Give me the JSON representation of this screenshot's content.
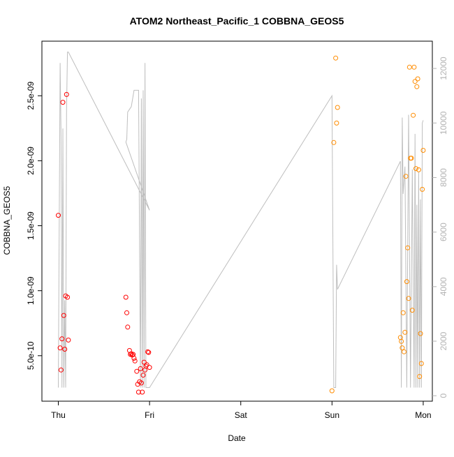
{
  "chart_data": {
    "type": "scatter",
    "title": "ATOM2 Northeast_Pacific_1 COBBNA_GEOS5",
    "xlabel": "Date",
    "ylabel": "COBBNA_GEOS5",
    "x_ticks": [
      "Thu",
      "Fri",
      "Sat",
      "Sun",
      "Mon"
    ],
    "xlim_days": [
      -0.18,
      4.1
    ],
    "ylim": [
      1.5e-10,
      2.92e-09
    ],
    "y_ticks": [
      {
        "value": 5e-10,
        "label": "5.0e-10"
      },
      {
        "value": 1e-09,
        "label": "1.0e-09"
      },
      {
        "value": 1.5e-09,
        "label": "1.5e-09"
      },
      {
        "value": 2e-09,
        "label": "2.0e-09"
      },
      {
        "value": 2.5e-09,
        "label": "2.5e-09"
      }
    ],
    "y2lim": [
      -200,
      13000
    ],
    "y2_ticks": [
      0,
      2000,
      4000,
      6000,
      8000,
      10000,
      12000
    ],
    "colors": {
      "series1": "#ff0000",
      "series2": "#ff8c00",
      "line": "#bebebe",
      "right_axis": "#b3b3b3"
    },
    "series": [
      {
        "color": "#ff0000",
        "x": [
          0.0,
          0.02,
          0.03,
          0.04,
          0.05,
          0.06,
          0.07,
          0.08,
          0.09,
          0.1,
          0.11,
          0.74,
          0.75,
          0.76,
          0.78,
          0.79,
          0.8,
          0.81,
          0.82,
          0.83,
          0.84,
          0.86,
          0.87,
          0.88,
          0.89,
          0.9,
          0.91,
          0.92,
          0.93,
          0.94,
          0.95,
          0.96,
          0.97,
          0.98,
          0.99,
          1.0
        ],
        "y": [
          1.58e-09,
          5.6e-10,
          3.9e-10,
          6.3e-10,
          2.45e-09,
          8.1e-10,
          5.5e-10,
          9.6e-10,
          2.51e-09,
          9.5e-10,
          6.2e-10,
          9.5e-10,
          8.3e-10,
          7.2e-10,
          5.4e-10,
          5.1e-10,
          5.15e-10,
          5.05e-10,
          5.1e-10,
          4.8e-10,
          4.6e-10,
          3.8e-10,
          2.8e-10,
          2.2e-10,
          3e-10,
          4e-10,
          2.9e-10,
          2.2e-10,
          3.5e-10,
          4.5e-10,
          3.9e-10,
          4.2e-10,
          4.3e-10,
          5.3e-10,
          5.25e-10,
          4.1e-10
        ]
      },
      {
        "color": "#ff8c00",
        "x": [
          3.0,
          3.02,
          3.04,
          3.05,
          3.06,
          3.75,
          3.76,
          3.77,
          3.78,
          3.79,
          3.8,
          3.81,
          3.82,
          3.83,
          3.84,
          3.85,
          3.86,
          3.87,
          3.88,
          3.89,
          3.9,
          3.91,
          3.92,
          3.93,
          3.94,
          3.95,
          3.96,
          3.97,
          3.98,
          3.99,
          4.0
        ],
        "y": [
          2.3e-10,
          2.14e-09,
          2.79e-09,
          2.29e-09,
          2.41e-09,
          6.4e-10,
          6.1e-10,
          5.6e-10,
          8.3e-10,
          5.3e-10,
          6.8e-10,
          1.88e-09,
          1.07e-09,
          1.33e-09,
          9.4e-10,
          2.72e-09,
          2.02e-09,
          2.02e-09,
          8.5e-10,
          2.35e-09,
          2.72e-09,
          2.61e-09,
          1.94e-09,
          2.57e-09,
          2.63e-09,
          1.93e-09,
          3.4e-10,
          6.7e-10,
          4.4e-10,
          1.78e-09,
          2.08e-09
        ]
      }
    ],
    "line_series": {
      "axis": "right",
      "x": [
        0.0,
        0.02,
        0.03,
        0.04,
        0.05,
        0.06,
        0.07,
        0.08,
        0.09,
        0.1,
        0.11,
        1.0,
        0.74,
        0.75,
        0.76,
        0.78,
        0.8,
        0.83,
        0.86,
        0.88,
        0.9,
        0.91,
        0.92,
        0.93,
        0.94,
        0.95,
        0.96,
        0.97,
        0.98,
        0.99,
        1.0,
        3.0,
        3.02,
        3.04,
        3.05,
        3.06,
        3.75,
        3.76,
        3.77,
        3.78,
        3.8,
        3.82,
        3.84,
        3.86,
        3.88,
        3.9,
        3.91,
        3.92,
        3.93,
        3.94,
        3.95,
        3.96,
        3.97,
        3.98,
        3.99,
        4.0
      ],
      "y": [
        300,
        12200,
        9500,
        300,
        9800,
        300,
        3500,
        300,
        10500,
        12600,
        12600,
        6800,
        9300,
        9400,
        10400,
        10500,
        10600,
        11200,
        11200,
        11200,
        300,
        10900,
        300,
        11200,
        300,
        12200,
        300,
        300,
        300,
        300,
        300,
        11000,
        300,
        300,
        4800,
        3900,
        8600,
        300,
        10200,
        7400,
        8400,
        300,
        10300,
        300,
        8300,
        300,
        9600,
        300,
        7000,
        300,
        8200,
        300,
        7200,
        300,
        10000,
        10100
      ]
    }
  }
}
